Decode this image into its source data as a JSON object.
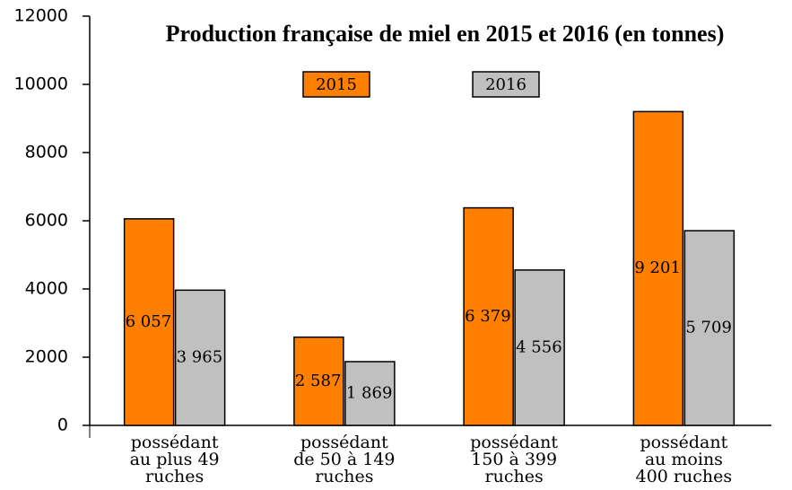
{
  "chart_data": {
    "type": "bar",
    "title": "Production française de miel en 2015 et 2016 (en tonnes)",
    "categories": [
      [
        "possédant",
        "au plus 49",
        "ruches"
      ],
      [
        "possédant",
        "de 50 à 149",
        "ruches"
      ],
      [
        "possédant",
        "150 à 399",
        "ruches"
      ],
      [
        "possédant",
        "au moins",
        "400 ruches"
      ]
    ],
    "series": [
      {
        "name": "2015",
        "color": "#ff7f00",
        "values": [
          6057,
          2587,
          6379,
          9201
        ],
        "value_labels": [
          "6 057",
          "2 587",
          "6 379",
          "9 201"
        ]
      },
      {
        "name": "2016",
        "color": "#c0c0c0",
        "values": [
          3965,
          1869,
          4556,
          5709
        ],
        "value_labels": [
          "3 965",
          "1 869",
          "4 556",
          "5 709"
        ]
      }
    ],
    "ylim": [
      0,
      12000
    ],
    "yticks": [
      0,
      2000,
      4000,
      6000,
      8000,
      10000,
      12000
    ],
    "grid": false
  }
}
